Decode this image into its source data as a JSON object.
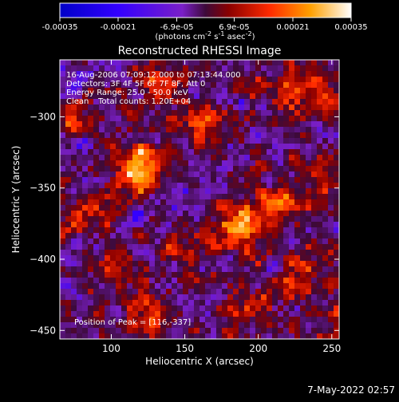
{
  "chart_data": {
    "type": "heatmap",
    "title": "Reconstructed RHESSI Image",
    "xlabel": "Heliocentric X (arcsec)",
    "ylabel": "Heliocentric Y (arcsec)",
    "xlim": [
      65,
      255
    ],
    "ylim": [
      -456,
      -260
    ],
    "x_ticks": [
      100,
      150,
      200,
      250
    ],
    "y_ticks": [
      -300,
      -350,
      -400,
      -450
    ],
    "colorbar": {
      "min": -0.00035,
      "max": 0.00035,
      "tick_values": [
        -0.00035,
        -0.00021,
        -6.9e-05,
        6.9e-05,
        0.00021,
        0.00035
      ],
      "tick_labels": [
        "-0.00035",
        "-0.00021",
        "-6.9e-05",
        "6.9e-05",
        "0.00021",
        "0.00035"
      ],
      "unit_label": "(photons cm",
      "unit_sup1": "-2",
      "unit_mid1": " s",
      "unit_sup2": "-1",
      "unit_mid2": " asec",
      "unit_sup3": "-2",
      "unit_end": ")"
    },
    "annotations": {
      "time_range": "16-Aug-2006 07:09:12.000 to 07:13:44.000",
      "detectors": "Detectors: 3F 4F 5F 6F 7F 8F, Att 0",
      "energy": "Energy Range: 25.0 - 50.0 keV",
      "clean": "Clean",
      "counts": "Total counts: 1.20E+04",
      "peak": "Position of Peak = [116,-337]"
    },
    "sources": [
      {
        "x": 116,
        "y": -337,
        "value": 0.00035
      },
      {
        "x": 188,
        "y": -377,
        "value": 0.0003
      },
      {
        "x": 213,
        "y": -360,
        "value": 0.00022
      },
      {
        "x": 163,
        "y": -307,
        "value": 0.0002
      },
      {
        "x": 240,
        "y": -285,
        "value": 0.00021
      },
      {
        "x": 82,
        "y": -370,
        "value": 0.00018
      },
      {
        "x": 102,
        "y": -405,
        "value": 0.00016
      },
      {
        "x": 135,
        "y": -278,
        "value": 0.00015
      },
      {
        "x": 232,
        "y": -412,
        "value": 0.00017
      },
      {
        "x": 78,
        "y": -300,
        "value": 0.00014
      },
      {
        "x": 245,
        "y": -340,
        "value": 0.00014
      },
      {
        "x": 150,
        "y": -395,
        "value": 0.00012
      },
      {
        "x": 195,
        "y": -430,
        "value": 0.00012
      },
      {
        "x": 125,
        "y": -440,
        "value": 0.00011
      },
      {
        "x": 210,
        "y": -280,
        "value": 0.00013
      },
      {
        "x": 250,
        "y": -445,
        "value": 0.00012
      }
    ]
  },
  "footer": {
    "timestamp": "7-May-2022 02:57"
  }
}
